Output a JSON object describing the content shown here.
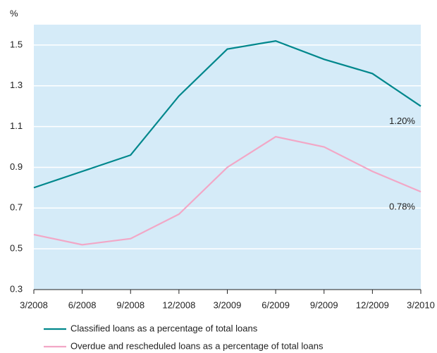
{
  "chart_data": {
    "type": "line",
    "y_label": "%",
    "categories": [
      "3/2008",
      "6/2008",
      "9/2008",
      "12/2008",
      "3/2009",
      "6/2009",
      "9/2009",
      "12/2009",
      "3/2010"
    ],
    "series": [
      {
        "name": "Classified loans as a percentage of total loans",
        "color": "#00878c",
        "values": [
          0.8,
          0.88,
          0.96,
          1.25,
          1.48,
          1.52,
          1.43,
          1.36,
          1.2
        ],
        "value_labels": [
          null,
          null,
          null,
          null,
          null,
          null,
          null,
          null,
          "1.20%"
        ]
      },
      {
        "name": "Overdue and rescheduled loans as a percentage of total loans",
        "color": "#f2a7c6",
        "values": [
          0.57,
          0.52,
          0.55,
          0.67,
          0.9,
          1.05,
          1.0,
          0.88,
          0.78
        ],
        "value_labels": [
          null,
          null,
          null,
          null,
          null,
          null,
          null,
          null,
          "0.78%"
        ]
      }
    ],
    "ylim": [
      0.3,
      1.6
    ],
    "yticks": [
      0.3,
      0.5,
      0.7,
      0.9,
      1.1,
      1.3,
      1.5
    ],
    "grid": true,
    "background": "#d5ebf8",
    "legend": "bottom-left"
  }
}
